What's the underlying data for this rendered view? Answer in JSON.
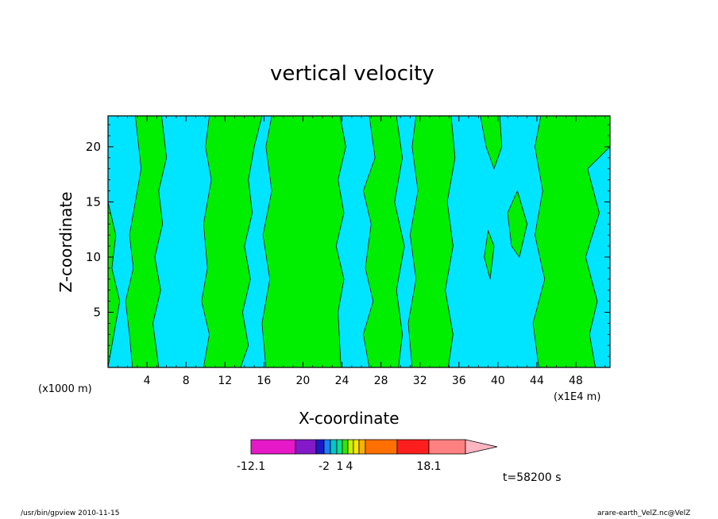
{
  "chart_data": {
    "type": "heatmap",
    "title": "vertical velocity",
    "xlabel": "X-coordinate",
    "ylabel": "Z-coordinate",
    "x_unit_left": "(x1000 m)",
    "x_unit_right": "(x1E4 m)",
    "xlim": [
      0,
      51.5
    ],
    "ylim": [
      0,
      22.8
    ],
    "x_ticks": [
      4,
      8,
      12,
      16,
      20,
      24,
      28,
      32,
      36,
      40,
      44,
      48
    ],
    "y_ticks": [
      5,
      10,
      15,
      20
    ],
    "colors": {
      "negative": "#00e5ff",
      "positive": "#00ee00"
    },
    "colorbar": {
      "segments": [
        "#e619c8",
        "#8419c8",
        "#1919c8",
        "#1980ff",
        "#00c8c8",
        "#00e690",
        "#34e600",
        "#c8f000",
        "#ffe600",
        "#ffb000",
        "#ff7000",
        "#ff1e1e",
        "#ff8080"
      ],
      "extend_color": "#ffb6c1",
      "labels": [
        "-12.1",
        "-2",
        "1",
        "4",
        "18.1"
      ]
    },
    "positive_regions": [
      [
        [
          2.5,
          0
        ],
        [
          2.2,
          3
        ],
        [
          1.8,
          6
        ],
        [
          2.6,
          9
        ],
        [
          2.2,
          12
        ],
        [
          2.8,
          15
        ],
        [
          3.4,
          18
        ],
        [
          2.8,
          22.8
        ],
        [
          5.5,
          22.8
        ],
        [
          6,
          19
        ],
        [
          5.2,
          16
        ],
        [
          5.6,
          13
        ],
        [
          4.8,
          10
        ],
        [
          5.4,
          7
        ],
        [
          4.6,
          4
        ],
        [
          5.2,
          0
        ]
      ],
      [
        [
          0,
          15
        ],
        [
          0.8,
          12
        ],
        [
          0.4,
          9
        ],
        [
          1.2,
          6
        ],
        [
          0.6,
          3
        ],
        [
          0,
          0
        ]
      ],
      [
        [
          9.8,
          0
        ],
        [
          10.4,
          3
        ],
        [
          9.6,
          6
        ],
        [
          10.2,
          9
        ],
        [
          9.8,
          13
        ],
        [
          10.6,
          17
        ],
        [
          10,
          20
        ],
        [
          10.4,
          22.8
        ],
        [
          15.8,
          22.8
        ],
        [
          15,
          20
        ],
        [
          14.4,
          17
        ],
        [
          14.8,
          14
        ],
        [
          14,
          11
        ],
        [
          14.6,
          8
        ],
        [
          13.8,
          5
        ],
        [
          14.4,
          2
        ],
        [
          13.6,
          0
        ]
      ],
      [
        [
          16.2,
          0
        ],
        [
          15.8,
          4
        ],
        [
          16.6,
          8
        ],
        [
          15.9,
          12
        ],
        [
          16.8,
          16
        ],
        [
          16.2,
          20
        ],
        [
          16.8,
          22.8
        ],
        [
          23.8,
          22.8
        ],
        [
          24.4,
          20
        ],
        [
          23.6,
          17
        ],
        [
          24.2,
          14
        ],
        [
          23.4,
          11
        ],
        [
          24.2,
          8
        ],
        [
          23.6,
          5
        ],
        [
          23.9,
          0
        ]
      ],
      [
        [
          26.8,
          0
        ],
        [
          26.2,
          3
        ],
        [
          27.2,
          6
        ],
        [
          26.4,
          9
        ],
        [
          27,
          13
        ],
        [
          26.2,
          16
        ],
        [
          27.4,
          19
        ],
        [
          26.8,
          22.8
        ],
        [
          29.6,
          22.8
        ],
        [
          30.2,
          19
        ],
        [
          29.4,
          15
        ],
        [
          30.4,
          11
        ],
        [
          29.6,
          7
        ],
        [
          30.2,
          3
        ],
        [
          29.8,
          0
        ]
      ],
      [
        [
          31.2,
          0
        ],
        [
          30.8,
          4
        ],
        [
          31.6,
          8
        ],
        [
          31,
          12
        ],
        [
          31.8,
          16
        ],
        [
          31.2,
          20
        ],
        [
          31.6,
          22.8
        ],
        [
          35.2,
          22.8
        ],
        [
          35.6,
          19
        ],
        [
          34.8,
          15
        ],
        [
          35.4,
          11
        ],
        [
          34.6,
          7
        ],
        [
          35.4,
          3
        ],
        [
          34.9,
          0
        ]
      ],
      [
        [
          38.2,
          22.8
        ],
        [
          38.8,
          20
        ],
        [
          39.6,
          18
        ],
        [
          40.4,
          20
        ],
        [
          40.2,
          22.8
        ]
      ],
      [
        [
          44.2,
          0
        ],
        [
          43.6,
          4
        ],
        [
          44.8,
          8
        ],
        [
          43.8,
          12
        ],
        [
          44.6,
          16
        ],
        [
          43.8,
          20
        ],
        [
          44.4,
          22.8
        ],
        [
          51.5,
          22.8
        ],
        [
          51.5,
          20
        ],
        [
          49.2,
          18
        ],
        [
          50.4,
          14
        ],
        [
          49,
          10
        ],
        [
          50.2,
          6
        ],
        [
          49.4,
          3
        ],
        [
          50,
          0
        ]
      ],
      [
        [
          41,
          14
        ],
        [
          42,
          16
        ],
        [
          43,
          13
        ],
        [
          42.2,
          10
        ],
        [
          41.4,
          11
        ]
      ],
      [
        [
          38.6,
          10
        ],
        [
          39.2,
          8
        ],
        [
          39.6,
          11
        ],
        [
          39,
          12.4
        ]
      ]
    ]
  },
  "time_label": "t=58200 s",
  "footer_left": "/usr/bin/gpview  2010-11-15",
  "footer_right": "arare-earth_VelZ.nc@VelZ"
}
